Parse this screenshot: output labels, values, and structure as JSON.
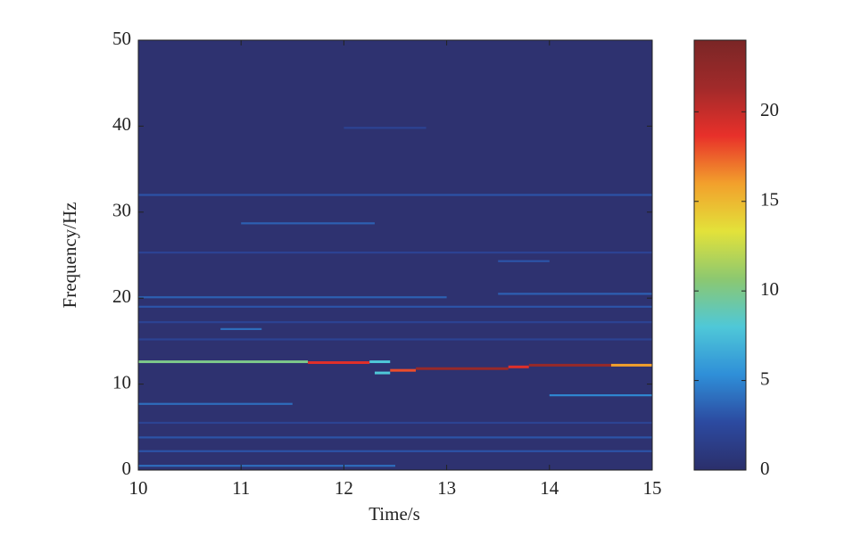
{
  "chart_data": {
    "type": "spectrogram",
    "xlabel": "Time/s",
    "ylabel": "Frequency/Hz",
    "xlim": [
      10,
      15
    ],
    "xticks": [
      10,
      11,
      12,
      13,
      14,
      15
    ],
    "ylim": [
      0,
      50
    ],
    "yticks": [
      0,
      10,
      20,
      30,
      40,
      50
    ],
    "background": "#2e3270",
    "colormap": [
      "#2b2f6b",
      "#2c4aa0",
      "#2f8fd8",
      "#4fc8d8",
      "#8cc870",
      "#e3e23a",
      "#f2a02c",
      "#e8302a",
      "#a12a2a",
      "#7a2626"
    ],
    "clim": [
      0,
      24
    ],
    "cticks": [
      0,
      5,
      10,
      15,
      20
    ],
    "segments": [
      {
        "x": [
          10,
          11.65
        ],
        "y": 12.6,
        "value": 10
      },
      {
        "x": [
          11.65,
          12.25
        ],
        "y": 12.5,
        "value": 19
      },
      {
        "x": [
          12.25,
          12.45
        ],
        "y": 12.6,
        "value": 8
      },
      {
        "x": [
          12.3,
          12.45
        ],
        "y": 11.3,
        "value": 8
      },
      {
        "x": [
          12.45,
          12.7
        ],
        "y": 11.6,
        "value": 18
      },
      {
        "x": [
          12.7,
          13.6
        ],
        "y": 11.8,
        "value": 22
      },
      {
        "x": [
          13.6,
          13.8
        ],
        "y": 12.0,
        "value": 19
      },
      {
        "x": [
          13.8,
          14.6
        ],
        "y": 12.2,
        "value": 22
      },
      {
        "x": [
          14.6,
          15
        ],
        "y": 12.2,
        "value": 16
      },
      {
        "x": [
          10,
          12.5
        ],
        "y": 0.5,
        "value": 4
      },
      {
        "x": [
          10,
          15
        ],
        "y": 2.2,
        "value": 3
      },
      {
        "x": [
          10,
          15
        ],
        "y": 3.8,
        "value": 3
      },
      {
        "x": [
          10,
          15
        ],
        "y": 5.5,
        "value": 2
      },
      {
        "x": [
          10,
          11.5
        ],
        "y": 7.7,
        "value": 4
      },
      {
        "x": [
          14,
          15
        ],
        "y": 8.7,
        "value": 5
      },
      {
        "x": [
          10,
          15
        ],
        "y": 15.2,
        "value": 2
      },
      {
        "x": [
          10.8,
          11.2
        ],
        "y": 16.4,
        "value": 4
      },
      {
        "x": [
          10,
          15
        ],
        "y": 17.2,
        "value": 2
      },
      {
        "x": [
          10,
          15
        ],
        "y": 19.0,
        "value": 3
      },
      {
        "x": [
          10,
          13
        ],
        "y": 20.1,
        "value": 3.5
      },
      {
        "x": [
          13.5,
          15
        ],
        "y": 20.5,
        "value": 3.5
      },
      {
        "x": [
          13.5,
          14
        ],
        "y": 24.3,
        "value": 3
      },
      {
        "x": [
          10,
          15
        ],
        "y": 25.3,
        "value": 2
      },
      {
        "x": [
          11,
          12.3
        ],
        "y": 28.7,
        "value": 3.5
      },
      {
        "x": [
          10,
          15
        ],
        "y": 32.0,
        "value": 3
      },
      {
        "x": [
          12,
          12.8
        ],
        "y": 39.8,
        "value": 2
      }
    ]
  }
}
